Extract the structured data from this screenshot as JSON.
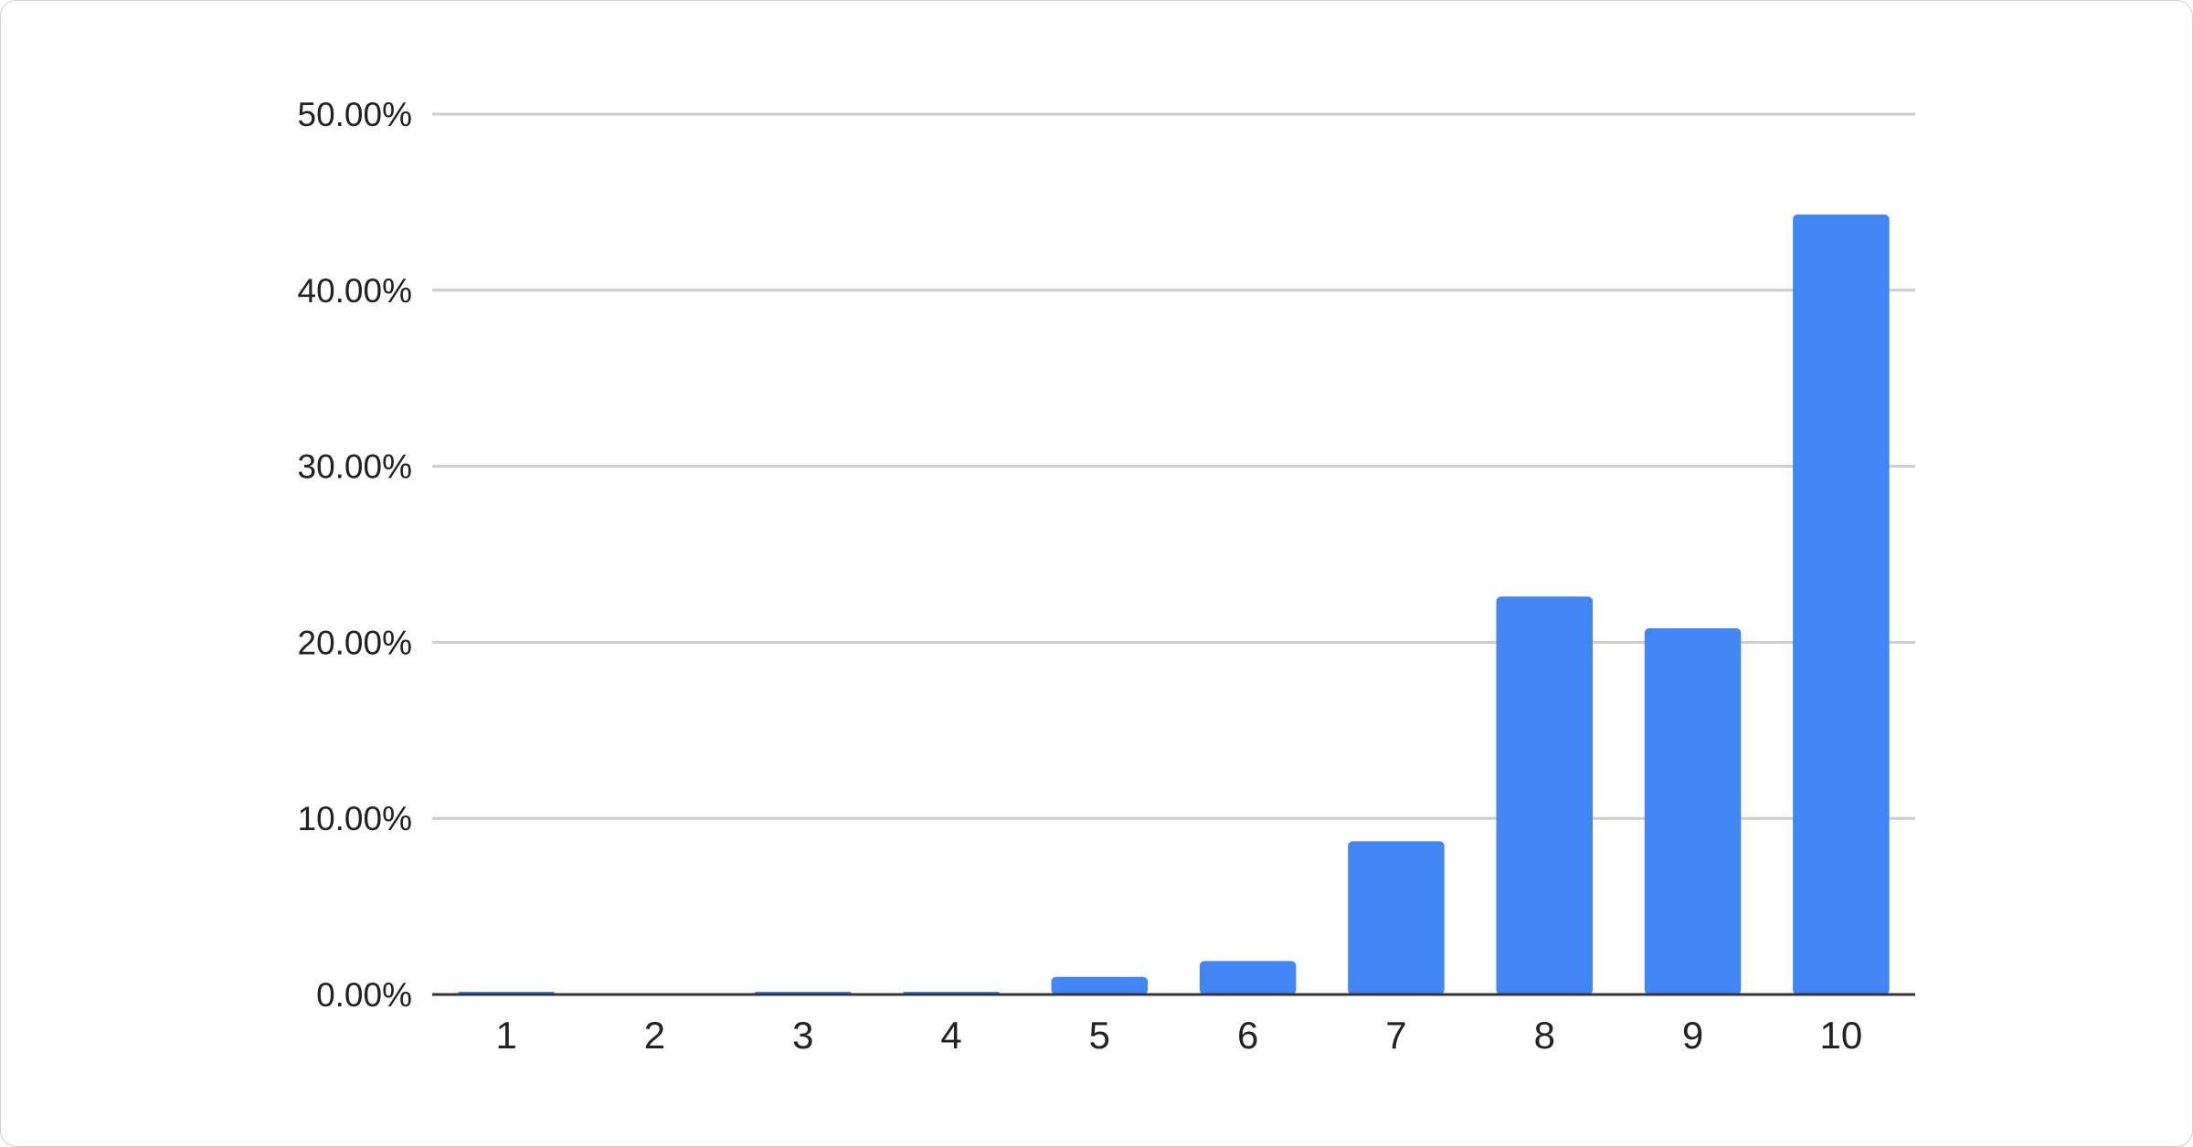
{
  "chart_data": {
    "type": "bar",
    "title": "",
    "xlabel": "",
    "ylabel": "",
    "categories": [
      "1",
      "2",
      "3",
      "4",
      "5",
      "6",
      "7",
      "8",
      "9",
      "10"
    ],
    "values": [
      0.1,
      0,
      0.1,
      0.1,
      1.0,
      1.9,
      8.7,
      22.6,
      20.8,
      44.3
    ],
    "value_unit": "percent",
    "ylim": [
      0,
      50
    ],
    "yticks": [
      0,
      10,
      20,
      30,
      40,
      50
    ],
    "ytick_labels": [
      "0.00%",
      "10.00%",
      "20.00%",
      "30.00%",
      "40.00%",
      "50.00%"
    ],
    "grid": true,
    "legend": "none",
    "bar_color": "#4285f4",
    "grid_color": "#cccccc",
    "axis_color": "#333333"
  }
}
